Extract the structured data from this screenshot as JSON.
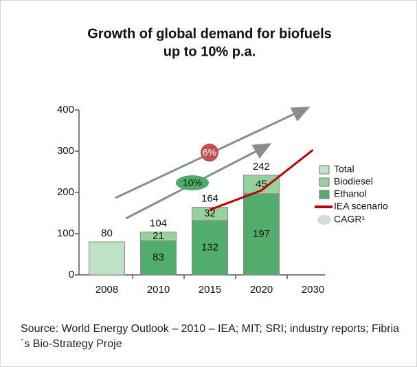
{
  "chart_data": {
    "type": "bar",
    "title": [
      "Growth of global demand for biofuels",
      "up to 10% p.a."
    ],
    "categories": [
      "2008",
      "2010",
      "2015",
      "2020",
      "2030"
    ],
    "series": [
      {
        "name": "Total",
        "type": "bar",
        "color": "#bfe2c4",
        "values": [
          80,
          null,
          null,
          null,
          null
        ]
      },
      {
        "name": "Biodiesel",
        "type": "bar",
        "color": "#97d19f",
        "values": [
          null,
          21,
          32,
          45,
          null
        ]
      },
      {
        "name": "Ethanol",
        "type": "bar",
        "color": "#52ac6c",
        "values": [
          null,
          83,
          132,
          197,
          null
        ]
      },
      {
        "name": "IEA scenario",
        "type": "line",
        "color": "#c00000",
        "values": [
          null,
          null,
          158,
          205,
          303
        ]
      }
    ],
    "totals": [
      80,
      104,
      164,
      242,
      null
    ],
    "cagr_labels": [
      "6%",
      "10%"
    ],
    "cagr_legend": "CAGR¹",
    "ylim": [
      0,
      400
    ],
    "yticks": [
      0,
      100,
      200,
      300,
      400
    ],
    "source": "Source: World Energy Outlook – 2010 – IEA; MIT; SRI; industry reports; Fibria´s Bio-Strategy Proje"
  }
}
